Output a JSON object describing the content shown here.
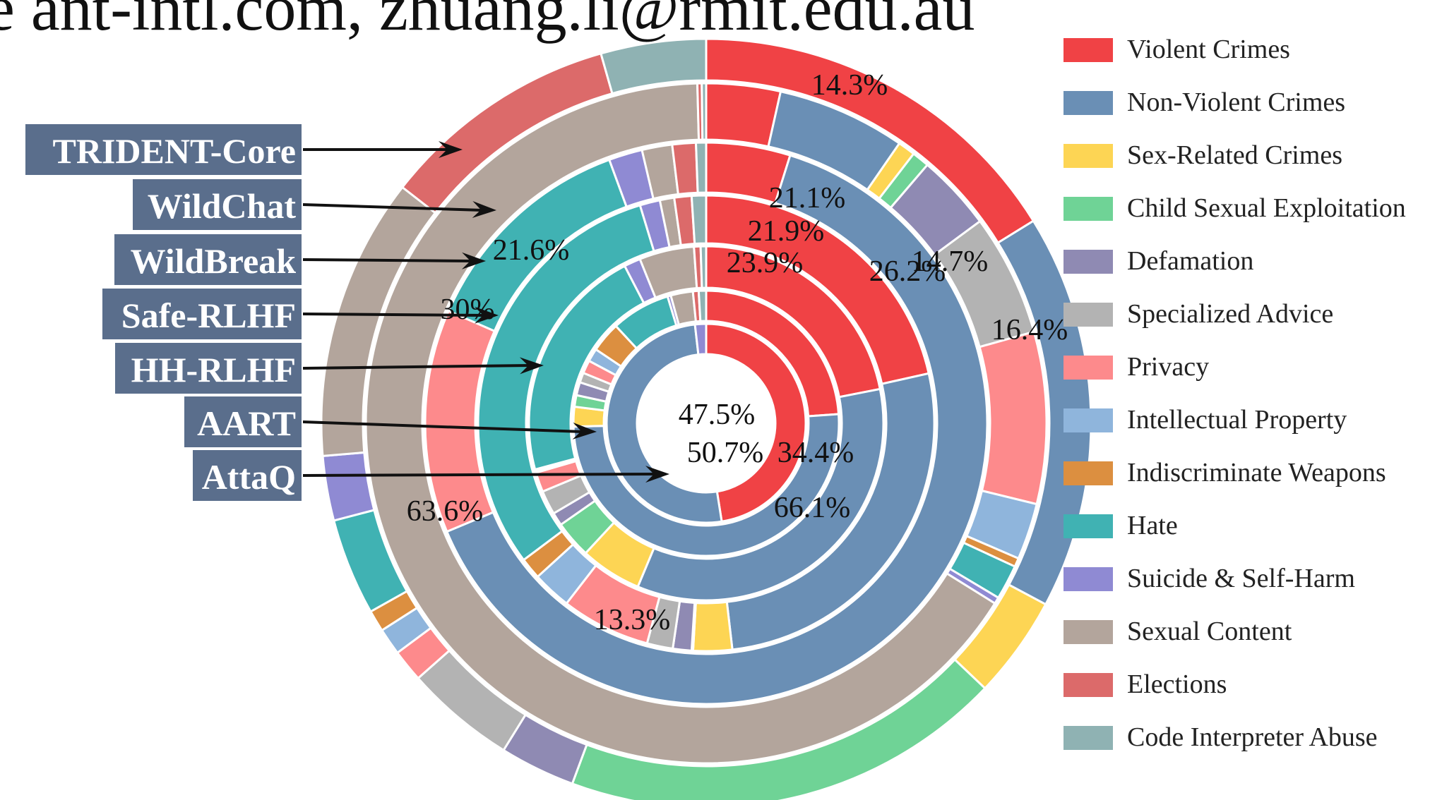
{
  "header_text": "e ant-intl.com,   zhuang.li@rmit.edu.au",
  "chart_data": {
    "type": "pie",
    "subtype": "multi-ring donut",
    "legend_position": "right",
    "categories": [
      {
        "name": "Violent Crimes",
        "color": "#f04245"
      },
      {
        "name": "Non-Violent Crimes",
        "color": "#6a8fb5"
      },
      {
        "name": "Sex-Related Crimes",
        "color": "#fdd554"
      },
      {
        "name": "Child Sexual Exploitation",
        "color": "#6fd396"
      },
      {
        "name": "Defamation",
        "color": "#8f8ab3"
      },
      {
        "name": "Specialized Advice",
        "color": "#b3b3b3"
      },
      {
        "name": "Privacy",
        "color": "#fd8a8c"
      },
      {
        "name": "Intellectual Property",
        "color": "#8fb5dc"
      },
      {
        "name": "Indiscriminate Weapons",
        "color": "#dc8f40"
      },
      {
        "name": "Hate",
        "color": "#40b2b3"
      },
      {
        "name": "Suicide & Self-Harm",
        "color": "#8f8ad3"
      },
      {
        "name": "Sexual Content",
        "color": "#b3a59c"
      },
      {
        "name": "Elections",
        "color": "#dc6a6a"
      },
      {
        "name": "Code Interpreter Abuse",
        "color": "#8fb2b3"
      }
    ],
    "series": [
      {
        "name": "TRIDENT-Core",
        "values": [
          14.3,
          14.7,
          3.8,
          16.4,
          2.8,
          4.1,
          1.2,
          1.0,
          0.8,
          3.6,
          2.4,
          10.5,
          8.9,
          3.9
        ]
      },
      {
        "name": "WildChat",
        "values": [
          3.4,
          5.9,
          0.8,
          0.8,
          3.5,
          5.6,
          7.9,
          2.6,
          0.4,
          1.6,
          0.3,
          63.6,
          0.2,
          0.2
        ]
      },
      {
        "name": "WildBreak",
        "values": [
          5.0,
          66.1,
          0,
          0,
          0,
          0,
          13.3,
          0,
          0,
          13.3,
          2.0,
          1.8,
          1.4,
          0.6
        ]
      },
      {
        "name": "Safe-RLHF",
        "values": [
          21.1,
          26.2,
          2.7,
          0.1,
          1.3,
          1.8,
          6.2,
          2.7,
          1.5,
          30,
          1.4,
          1.0,
          1.2,
          1.0
        ]
      },
      {
        "name": "HH-RLHF",
        "values": [
          21.9,
          34.4,
          5.6,
          3.4,
          1.2,
          2.2,
          1.8,
          0.2,
          0.1,
          21.6,
          1.5,
          5.0,
          0.6,
          0.5
        ]
      },
      {
        "name": "AART",
        "values": [
          23.9,
          50.7,
          2.4,
          1.4,
          1.6,
          1.2,
          1.6,
          1.6,
          3.7,
          7.2,
          0.4,
          2.7,
          0.7,
          0.9
        ]
      },
      {
        "name": "AttaQ",
        "values": [
          47.5,
          50.7,
          0,
          0,
          0,
          0,
          0,
          0,
          0,
          0,
          1.8,
          0,
          0,
          0
        ]
      }
    ],
    "data_labels": [
      "14.3%",
      "21.1%",
      "21.9%",
      "23.9%",
      "26.2%",
      "14.7%",
      "16.4%",
      "21.6%",
      "30%",
      "47.5%",
      "50.7%",
      "34.4%",
      "66.1%",
      "63.6%",
      "13.3%"
    ]
  }
}
